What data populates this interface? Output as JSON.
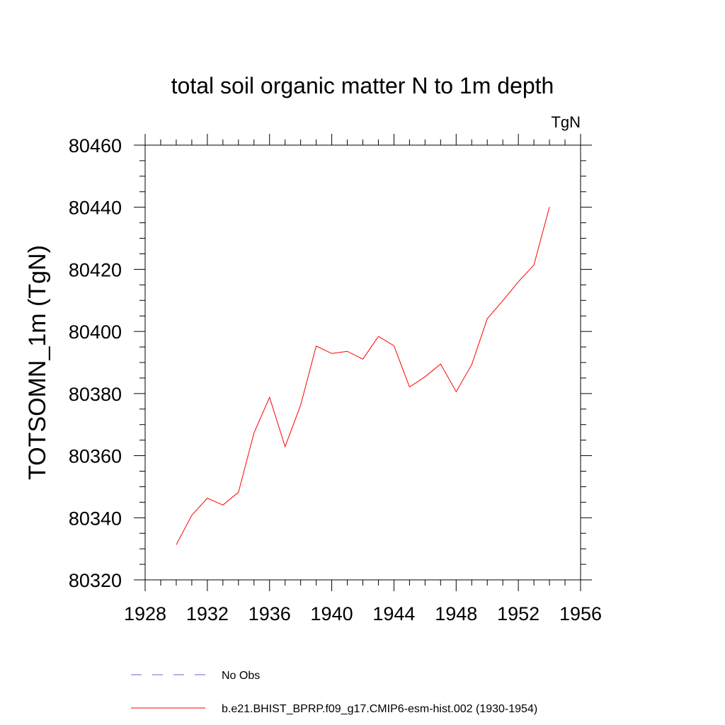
{
  "chart_data": {
    "type": "line",
    "title": "total soil organic matter N to 1m depth",
    "units_label": "TgN",
    "xlabel": "",
    "ylabel": "TOTSOMN_1m  (TgN)",
    "xlim": [
      1928,
      1956
    ],
    "ylim": [
      80320,
      80460
    ],
    "x_ticks": [
      1928,
      1932,
      1936,
      1940,
      1944,
      1948,
      1952,
      1956
    ],
    "y_ticks": [
      80320,
      80340,
      80360,
      80380,
      80400,
      80420,
      80440,
      80460
    ],
    "series": [
      {
        "name": "b.e21.BHIST_BPRP.f09_g17.CMIP6-esm-hist.002 (1930-1954)",
        "color": "#ff0000",
        "style": "solid",
        "x": [
          1930,
          1931,
          1932,
          1933,
          1934,
          1935,
          1936,
          1937,
          1938,
          1939,
          1940,
          1941,
          1942,
          1943,
          1944,
          1945,
          1946,
          1947,
          1948,
          1949,
          1950,
          1951,
          1952,
          1953,
          1954
        ],
        "y": [
          80331.3,
          80340.8,
          80346.3,
          80344.1,
          80348.2,
          80367.3,
          80378.8,
          80362.9,
          80376.3,
          80395.3,
          80392.9,
          80393.6,
          80391.1,
          80398.4,
          80395.4,
          80382.1,
          80385.4,
          80389.5,
          80380.6,
          80389.3,
          80404.1,
          80409.9,
          80416.0,
          80421.4,
          80440.1
        ]
      }
    ],
    "legend": {
      "placement": "bottom",
      "entries": [
        {
          "label": "No Obs",
          "color": "#6666cc",
          "style": "dashed"
        },
        {
          "label": "b.e21.BHIST_BPRP.f09_g17.CMIP6-esm-hist.002 (1930-1954)",
          "color": "#ff0000",
          "style": "solid"
        }
      ]
    }
  }
}
